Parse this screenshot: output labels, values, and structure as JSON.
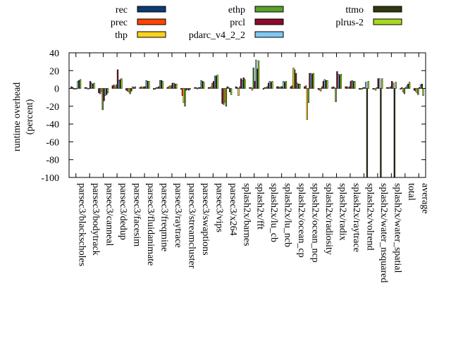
{
  "chart_data": {
    "type": "bar",
    "ylabel": "runtime overhead (percent)",
    "ylabel_lines": [
      "runtime overhead",
      "(percent)"
    ],
    "ylim": [
      -100,
      40
    ],
    "yticks": [
      -100,
      -80,
      -60,
      -40,
      -20,
      0,
      20,
      40
    ],
    "yticks_labels": [
      "-100",
      "-80",
      "-60",
      "-40",
      "-20",
      "0",
      "20",
      "40"
    ],
    "grid": false,
    "legend_position": "top",
    "categories": [
      "parsec3/blackscholes",
      "parsec3/bodytrack",
      "parsec3/canneal",
      "parsec3/dedup",
      "parsec3/facesim",
      "parsec3/fluidanimate",
      "parsec3/freqmine",
      "parsec3/raytrace",
      "parsec3/streamcluster",
      "parsec3/swaptions",
      "parsec3/vips",
      "parsec3/x264",
      "splash2x/barnes",
      "splash2x/fft",
      "splash2x/lu_cb",
      "splash2x/lu_ncb",
      "splash2x/ocean_cp",
      "splash2x/ocean_ncp",
      "splash2x/radiosity",
      "splash2x/radix",
      "splash2x/raytrace",
      "splash2x/volrend",
      "splash2x/water_nsquared",
      "splash2x/water_spatial",
      "total",
      "average"
    ],
    "series": [
      {
        "name": "rec",
        "color": "#0b3b73",
        "values": [
          2,
          1,
          -5,
          3,
          -2,
          1,
          -1,
          1,
          -1,
          1,
          1,
          -17,
          2,
          1,
          -1,
          2,
          2,
          2,
          -1,
          1,
          2,
          -1,
          -1,
          1,
          -1,
          -2
        ]
      },
      {
        "name": "prec",
        "color": "#ff4500",
        "values": [
          1,
          1,
          -6,
          4,
          -3,
          2,
          -1,
          2,
          -8,
          1,
          1,
          -18,
          1,
          1,
          1,
          2,
          3,
          3,
          -2,
          2,
          2,
          -1,
          -1,
          1,
          1,
          -3
        ]
      },
      {
        "name": "thp",
        "color": "#ffd21a",
        "values": [
          -1,
          0,
          -3,
          2,
          -4,
          1,
          1,
          3,
          -16,
          0,
          2,
          -15,
          -8,
          -2,
          1,
          1,
          23,
          -35,
          -3,
          1,
          1,
          -1,
          -2,
          1,
          -4,
          -5
        ]
      },
      {
        "name": "ethp",
        "color": "#5aa12b",
        "values": [
          0,
          0,
          -24,
          4,
          -6,
          2,
          1,
          3,
          -20,
          1,
          6,
          -20,
          2,
          23,
          2,
          2,
          21,
          -16,
          2,
          -15,
          2,
          1,
          1,
          2,
          -6,
          -7
        ]
      },
      {
        "name": "prcl",
        "color": "#8b0a2a",
        "values": [
          0,
          8,
          -14,
          21,
          -3,
          2,
          2,
          6,
          -2,
          1,
          8,
          2,
          11,
          8,
          6,
          2,
          17,
          17,
          8,
          19,
          8,
          1,
          11,
          8,
          1,
          1
        ]
      },
      {
        "name": "pdarc_v4_2_2",
        "color": "#7ec8f2",
        "values": [
          8,
          6,
          -8,
          9,
          2,
          9,
          9,
          6,
          -1,
          9,
          14,
          1,
          9,
          32,
          8,
          8,
          6,
          17,
          10,
          16,
          9,
          7,
          11,
          6,
          3,
          4
        ]
      },
      {
        "name": "ttmo",
        "color": "#2f3a0f",
        "values": [
          9,
          5,
          -7,
          10,
          1,
          8,
          9,
          5,
          -2,
          8,
          14,
          -4,
          12,
          22,
          7,
          7,
          5,
          16,
          9,
          15,
          8,
          -100,
          -100,
          -100,
          5,
          5
        ]
      },
      {
        "name": "plrus-2",
        "color": "#a8d81c",
        "values": [
          10,
          6,
          -5,
          11,
          2,
          8,
          8,
          5,
          -1,
          7,
          15,
          -7,
          10,
          31,
          8,
          8,
          5,
          17,
          9,
          16,
          8,
          8,
          11,
          7,
          7,
          -8
        ]
      }
    ]
  }
}
